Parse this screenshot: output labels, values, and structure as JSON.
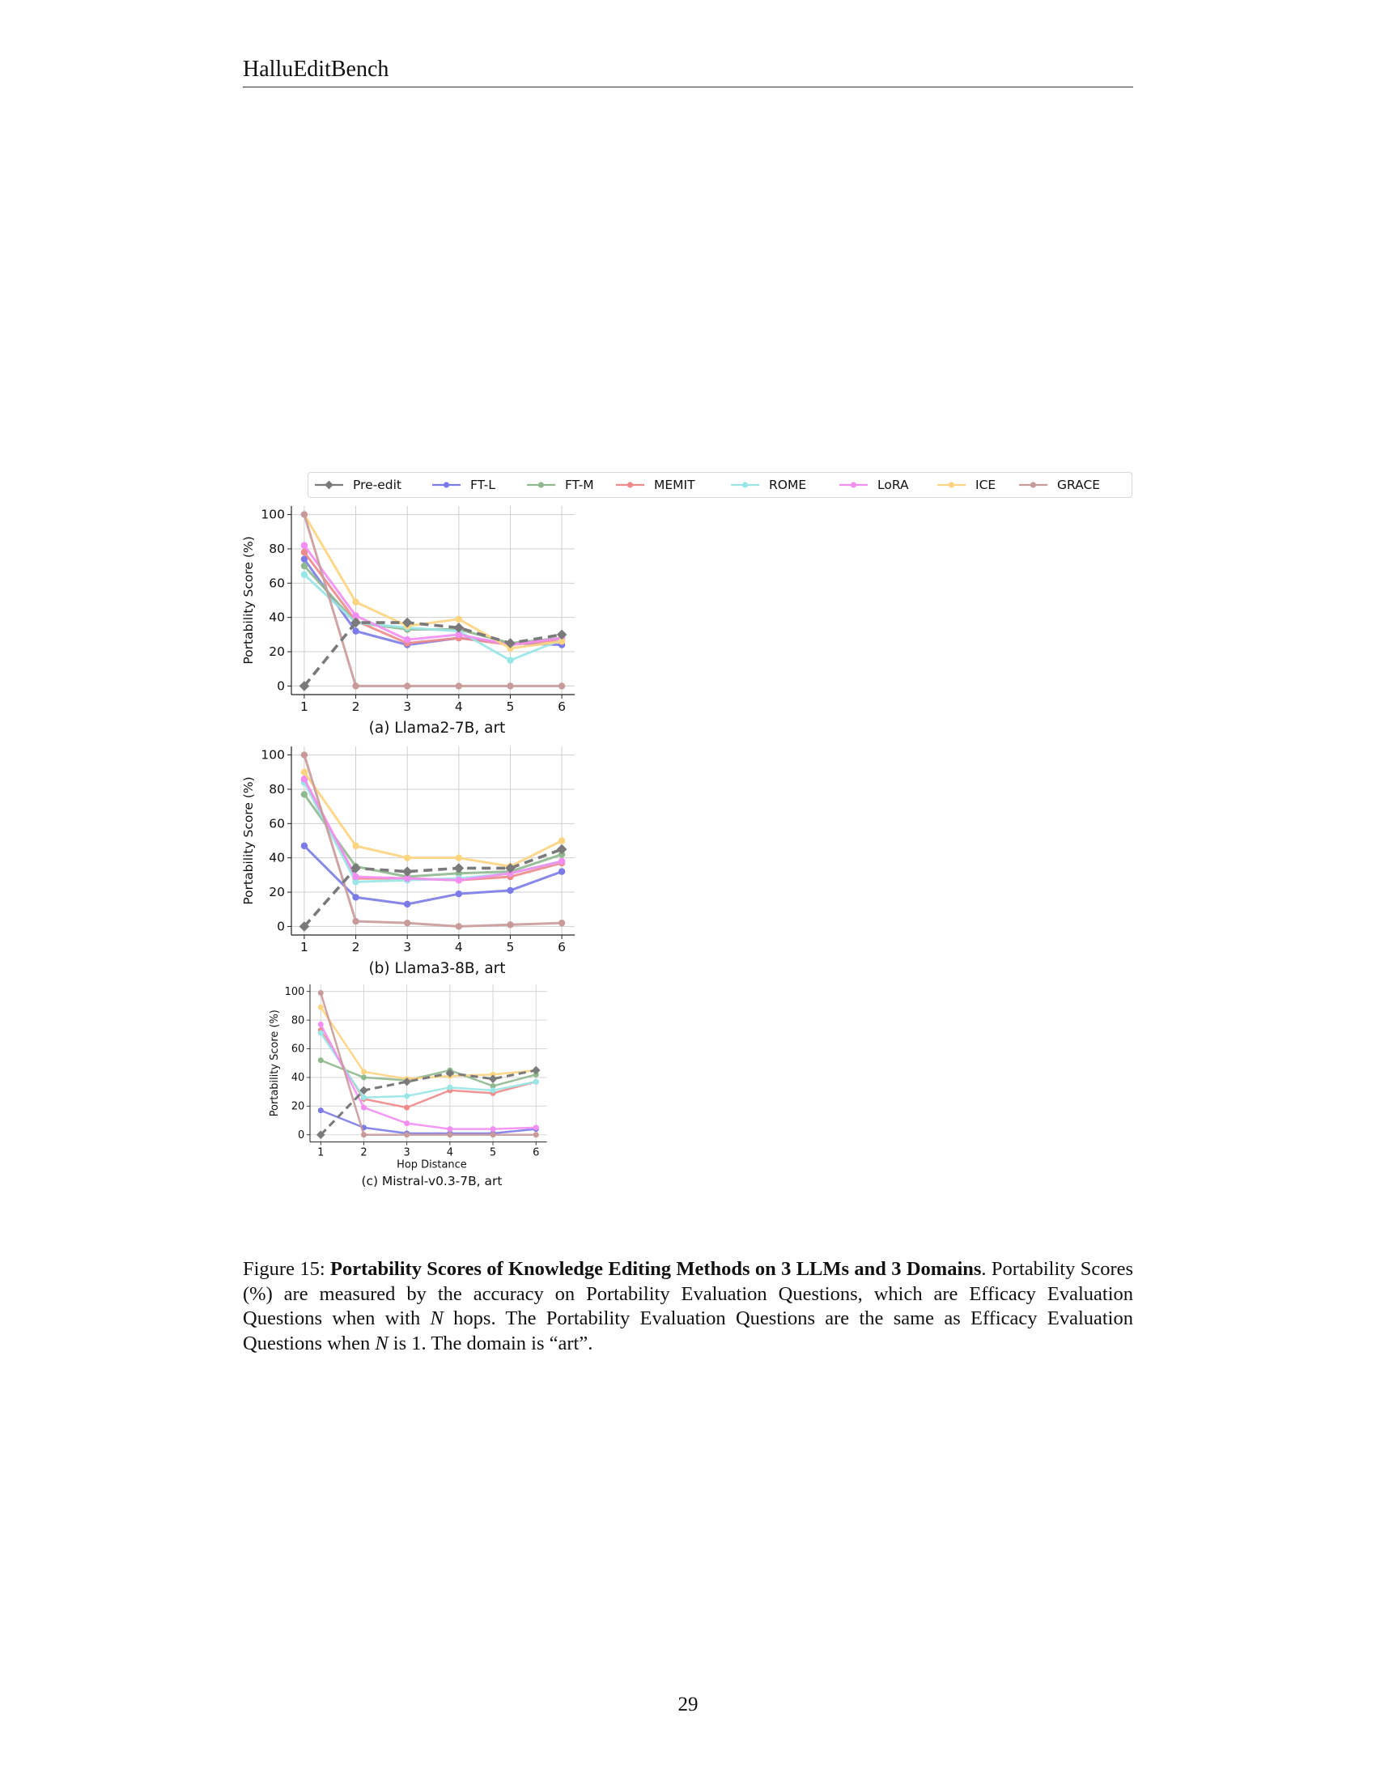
{
  "header": {
    "title": "HalluEditBench"
  },
  "page_number": "29",
  "caption": {
    "label": "Figure 15:",
    "title": "Portability Scores of Knowledge Editing Methods on 3 LLMs and 3 Domains",
    "period": ".",
    "t1": "Portability Scores (%) are measured by the accuracy on Portability Evaluation Questions, which are Efficacy Evaluation Questions when with ",
    "n1": "N",
    "t2": " hops. The Portability Evaluation Questions are the same as Efficacy Evaluation Questions when ",
    "n2": "N",
    "t3": " is 1. The domain is “art”."
  },
  "legend": {
    "entries": [
      "Pre-edit",
      "FT-L",
      "FT-M",
      "MEMIT",
      "ROME",
      "LoRA",
      "ICE",
      "GRACE"
    ]
  },
  "colors": {
    "Pre-edit": "#7a7a7a",
    "FT-L": "#7b7be8",
    "FT-M": "#8fb88f",
    "MEMIT": "#ee8a8a",
    "ROME": "#99e6e6",
    "LoRA": "#f28ef2",
    "ICE": "#fdd480",
    "GRACE": "#c99a9a"
  },
  "chart_data": [
    {
      "type": "line",
      "title": "(a) Llama2-7B, art",
      "xlabel": "",
      "ylabel": "Portability Score (%)",
      "x": [
        1,
        2,
        3,
        4,
        5,
        6
      ],
      "ylim": [
        -5,
        105
      ],
      "yticks": [
        0,
        20,
        40,
        60,
        80,
        100
      ],
      "series": [
        {
          "name": "FT-L",
          "values": [
            74,
            32,
            24,
            28,
            25,
            24
          ]
        },
        {
          "name": "FT-M",
          "values": [
            70,
            37,
            33,
            33,
            25,
            28
          ]
        },
        {
          "name": "MEMIT",
          "values": [
            78,
            38,
            25,
            28,
            24,
            27
          ]
        },
        {
          "name": "ROME",
          "values": [
            65,
            37,
            34,
            32,
            15,
            27
          ]
        },
        {
          "name": "LoRA",
          "values": [
            82,
            41,
            27,
            30,
            24,
            28
          ]
        },
        {
          "name": "ICE",
          "values": [
            100,
            49,
            35,
            39,
            22,
            26
          ]
        },
        {
          "name": "GRACE",
          "values": [
            100,
            0,
            0,
            0,
            0,
            0
          ]
        },
        {
          "name": "Pre-edit",
          "values": [
            0,
            37,
            37,
            34,
            25,
            30
          ]
        }
      ]
    },
    {
      "type": "line",
      "title": "(b) Llama3-8B, art",
      "xlabel": "",
      "ylabel": "Portability Score (%)",
      "x": [
        1,
        2,
        3,
        4,
        5,
        6
      ],
      "ylim": [
        -5,
        105
      ],
      "yticks": [
        0,
        20,
        40,
        60,
        80,
        100
      ],
      "series": [
        {
          "name": "FT-L",
          "values": [
            47,
            17,
            13,
            19,
            21,
            32
          ]
        },
        {
          "name": "FT-M",
          "values": [
            77,
            35,
            29,
            31,
            32,
            42
          ]
        },
        {
          "name": "MEMIT",
          "values": [
            85,
            28,
            28,
            27,
            29,
            37
          ]
        },
        {
          "name": "ROME",
          "values": [
            84,
            26,
            27,
            28,
            31,
            38
          ]
        },
        {
          "name": "LoRA",
          "values": [
            86,
            29,
            28,
            27,
            31,
            38
          ]
        },
        {
          "name": "ICE",
          "values": [
            90,
            47,
            40,
            40,
            35,
            50
          ]
        },
        {
          "name": "GRACE",
          "values": [
            100,
            3,
            2,
            0,
            1,
            2
          ]
        },
        {
          "name": "Pre-edit",
          "values": [
            0,
            34,
            32,
            34,
            34,
            45
          ]
        }
      ]
    },
    {
      "type": "line",
      "title": "(c) Mistral-v0.3-7B, art",
      "xlabel": "Hop Distance",
      "ylabel": "Portability Score (%)",
      "x": [
        1,
        2,
        3,
        4,
        5,
        6
      ],
      "ylim": [
        -5,
        105
      ],
      "yticks": [
        0,
        20,
        40,
        60,
        80,
        100
      ],
      "series": [
        {
          "name": "FT-L",
          "values": [
            17,
            5,
            1,
            1,
            1,
            4
          ]
        },
        {
          "name": "FT-M",
          "values": [
            52,
            40,
            38,
            45,
            34,
            42
          ]
        },
        {
          "name": "MEMIT",
          "values": [
            73,
            25,
            19,
            31,
            29,
            37
          ]
        },
        {
          "name": "ROME",
          "values": [
            71,
            26,
            27,
            33,
            31,
            37
          ]
        },
        {
          "name": "LoRA",
          "values": [
            77,
            19,
            8,
            4,
            4,
            5
          ]
        },
        {
          "name": "ICE",
          "values": [
            89,
            44,
            39,
            41,
            42,
            45
          ]
        },
        {
          "name": "GRACE",
          "values": [
            99,
            0,
            0,
            0,
            0,
            0
          ]
        },
        {
          "name": "Pre-edit",
          "values": [
            0,
            31,
            37,
            43,
            39,
            45
          ]
        }
      ]
    }
  ]
}
